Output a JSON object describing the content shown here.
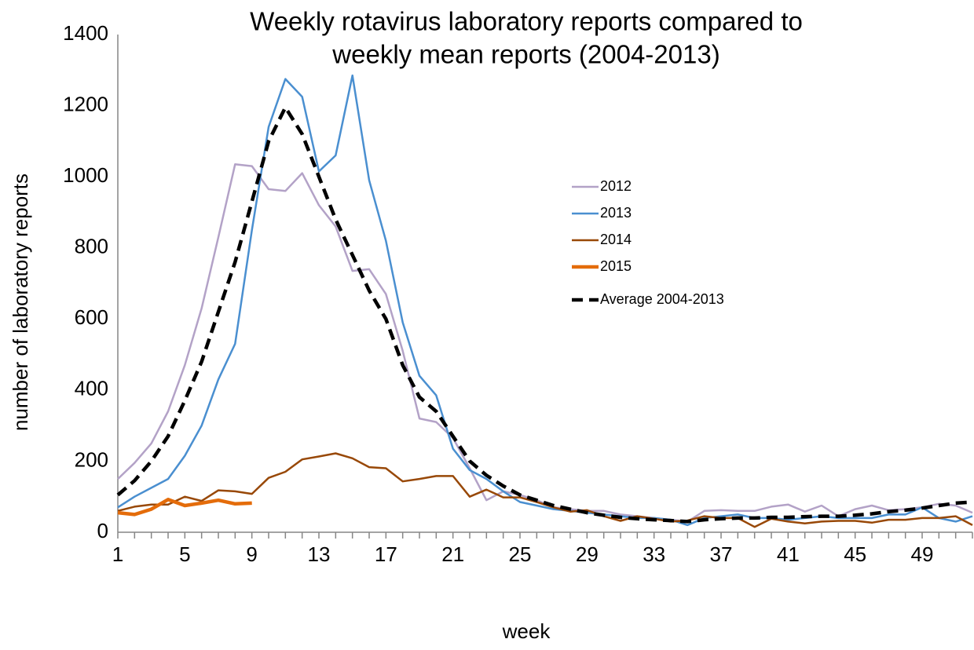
{
  "chart_data": {
    "type": "line",
    "title": [
      "Weekly rotavirus laboratory reports compared to",
      "weekly mean reports (2004-2013)"
    ],
    "x_label": "week",
    "y_label": "number of laboratory reports",
    "x": [
      1,
      2,
      3,
      4,
      5,
      6,
      7,
      8,
      9,
      10,
      11,
      12,
      13,
      14,
      15,
      16,
      17,
      18,
      19,
      20,
      21,
      22,
      23,
      24,
      25,
      26,
      27,
      28,
      29,
      30,
      31,
      32,
      33,
      34,
      35,
      36,
      37,
      38,
      39,
      40,
      41,
      42,
      43,
      44,
      45,
      46,
      47,
      48,
      49,
      50,
      51,
      52
    ],
    "xlim": [
      1,
      52
    ],
    "xticks": [
      1,
      5,
      9,
      13,
      17,
      21,
      25,
      29,
      33,
      37,
      41,
      45,
      49
    ],
    "ylim": [
      0,
      1400
    ],
    "yticks": [
      0,
      200,
      400,
      600,
      800,
      1000,
      1200,
      1400
    ],
    "grid": false,
    "legend": "right",
    "series": [
      {
        "name": "2012",
        "color": "#b3a2c7",
        "width": 2.5,
        "dashed": false,
        "values": [
          150,
          195,
          250,
          340,
          470,
          630,
          830,
          1035,
          1030,
          965,
          960,
          1010,
          920,
          860,
          735,
          740,
          670,
          510,
          320,
          310,
          265,
          180,
          90,
          115,
          105,
          90,
          70,
          65,
          60,
          60,
          50,
          45,
          40,
          35,
          30,
          60,
          62,
          60,
          60,
          72,
          78,
          58,
          75,
          45,
          65,
          75,
          62,
          65,
          70,
          80,
          75,
          55
        ]
      },
      {
        "name": "2013",
        "color": "#4a8fd0",
        "width": 2.5,
        "dashed": false,
        "values": [
          70,
          100,
          125,
          150,
          215,
          300,
          430,
          530,
          850,
          1140,
          1275,
          1225,
          1015,
          1060,
          1285,
          990,
          820,
          590,
          440,
          385,
          235,
          175,
          150,
          115,
          85,
          75,
          65,
          60,
          55,
          50,
          45,
          40,
          40,
          35,
          20,
          40,
          45,
          50,
          40,
          40,
          35,
          40,
          45,
          40,
          40,
          40,
          50,
          50,
          70,
          40,
          30,
          45
        ]
      },
      {
        "name": "2014",
        "color": "#984807",
        "width": 2.5,
        "dashed": false,
        "values": [
          60,
          72,
          78,
          78,
          100,
          88,
          118,
          115,
          108,
          153,
          170,
          205,
          213,
          222,
          208,
          183,
          180,
          143,
          150,
          158,
          158,
          100,
          120,
          98,
          98,
          85,
          70,
          58,
          62,
          45,
          32,
          45,
          38,
          30,
          33,
          45,
          40,
          40,
          15,
          38,
          30,
          25,
          30,
          32,
          32,
          27,
          35,
          35,
          40,
          40,
          45,
          20
        ]
      },
      {
        "name": "2015",
        "color": "#e46c0a",
        "width": 4.5,
        "dashed": false,
        "values": [
          55,
          50,
          65,
          92,
          75,
          82,
          90,
          80,
          82,
          null,
          null,
          null,
          null,
          null,
          null,
          null,
          null,
          null,
          null,
          null,
          null,
          null,
          null,
          null,
          null,
          null,
          null,
          null,
          null,
          null,
          null,
          null,
          null,
          null,
          null,
          null,
          null,
          null,
          null,
          null,
          null,
          null,
          null,
          null,
          null,
          null,
          null,
          null,
          null,
          null,
          null,
          null
        ]
      },
      {
        "name": "Average 2004-2013",
        "color": "#000000",
        "width": 4.5,
        "dashed": true,
        "values": [
          105,
          145,
          200,
          270,
          370,
          480,
          620,
          760,
          930,
          1100,
          1195,
          1120,
          1000,
          880,
          780,
          680,
          600,
          470,
          380,
          340,
          270,
          200,
          160,
          130,
          105,
          90,
          75,
          65,
          55,
          48,
          42,
          38,
          35,
          33,
          30,
          35,
          38,
          40,
          40,
          42,
          42,
          44,
          45,
          45,
          48,
          52,
          58,
          62,
          68,
          75,
          82,
          85
        ]
      }
    ]
  }
}
